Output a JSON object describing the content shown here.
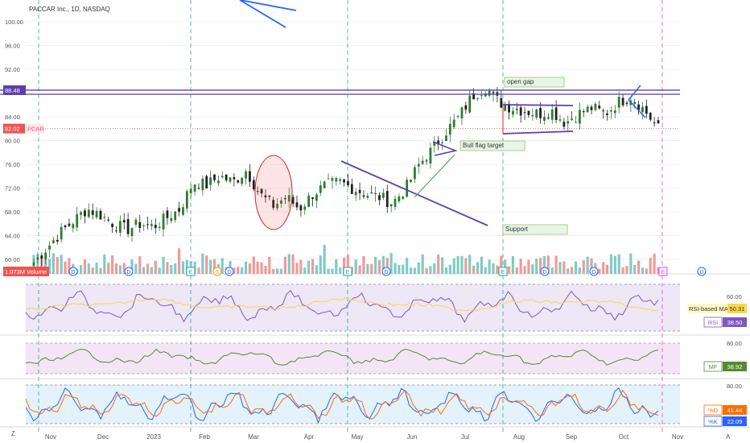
{
  "header": {
    "symbol_title": "PACCAR Inc., 1D, NASDAQ"
  },
  "colors": {
    "bull": "#26a69a",
    "bear": "#ef5350",
    "candle_up": "#2e7d32",
    "candle_dn": "#222222",
    "drawing_purple": "#5b3fb0",
    "drawing_blue": "#2962ff",
    "event_green": "#26a69a",
    "event_pink": "#e040fb",
    "rsi_line": "#7e57c2",
    "rsi_ma": "#f9d84a",
    "mfi_line": "#558b2f",
    "stoch_k": "#2962ff",
    "stoch_d": "#ff6d00"
  },
  "price_axis": {
    "ticks": [
      "100.00",
      "96.00",
      "92.00",
      "88.48",
      "84.00",
      "82.02",
      "80.00",
      "76.00",
      "72.00",
      "68.00",
      "64.00",
      "60.00",
      "1.073M"
    ],
    "badges": [
      {
        "value": "88.48",
        "color": "#5b3fb0"
      },
      {
        "value": "82.02",
        "color": "#ef5350"
      },
      {
        "value": "1.073M",
        "color": "#ef5350"
      }
    ],
    "symbol_tag": "PCAR",
    "volume_tag": "Volume"
  },
  "time_axis": [
    "Nov",
    "Dec",
    "2023",
    "Feb",
    "Mar",
    "Apr",
    "May",
    "Jun",
    "Jul",
    "Aug",
    "Sep",
    "Oct",
    "Nov"
  ],
  "corner": {
    "left": "Z",
    "right": "A"
  },
  "annotations": {
    "open_gap": "open gap",
    "bull_flag": "Bull flag target",
    "support": "Support"
  },
  "events": [
    {
      "type": "D",
      "label": "D"
    },
    {
      "type": "D",
      "label": "D"
    },
    {
      "type": "E",
      "label": "E"
    },
    {
      "type": "S",
      "label": "S"
    },
    {
      "type": "D",
      "label": "D"
    },
    {
      "type": "E",
      "label": "E"
    },
    {
      "type": "D",
      "label": "D"
    },
    {
      "type": "E",
      "label": "E"
    },
    {
      "type": "D",
      "label": "D"
    },
    {
      "type": "D",
      "label": "D"
    },
    {
      "type": "E",
      "label": "E"
    },
    {
      "type": "D",
      "label": "D"
    }
  ],
  "rsi": {
    "label": "RSI",
    "value": "38.50",
    "ma_label": "RSI-based MA",
    "ma_value": "50.31",
    "tick": "60.00"
  },
  "mfi": {
    "label": "MF",
    "value": "38.92",
    "tick": "80.00"
  },
  "stoch": {
    "k_label": "%K",
    "k_value": "22.09",
    "d_label": "%D",
    "d_value": "41.44",
    "tick": "80.00"
  },
  "chart_data": {
    "type": "candlestick",
    "title": "PACCAR Inc., 1D, NASDAQ",
    "ylim": [
      58,
      102
    ],
    "close_series": [
      {
        "x": "Nov",
        "y": 59.5
      },
      {
        "x": "Nov",
        "y": 62.0
      },
      {
        "x": "Nov",
        "y": 64.5
      },
      {
        "x": "Nov",
        "y": 66.5
      },
      {
        "x": "Dec",
        "y": 68.5
      },
      {
        "x": "Dec",
        "y": 67.5
      },
      {
        "x": "Dec",
        "y": 66.0
      },
      {
        "x": "Dec",
        "y": 65.0
      },
      {
        "x": "2023",
        "y": 66.0
      },
      {
        "x": "2023",
        "y": 65.5
      },
      {
        "x": "2023",
        "y": 67.0
      },
      {
        "x": "2023",
        "y": 68.5
      },
      {
        "x": "Feb",
        "y": 73.0
      },
      {
        "x": "Feb",
        "y": 72.5
      },
      {
        "x": "Feb",
        "y": 74.0
      },
      {
        "x": "Feb",
        "y": 73.0
      },
      {
        "x": "Mar",
        "y": 75.0
      },
      {
        "x": "Mar",
        "y": 71.0
      },
      {
        "x": "Mar",
        "y": 69.0
      },
      {
        "x": "Mar",
        "y": 70.5
      },
      {
        "x": "Apr",
        "y": 68.5
      },
      {
        "x": "Apr",
        "y": 71.0
      },
      {
        "x": "Apr",
        "y": 72.5
      },
      {
        "x": "Apr",
        "y": 73.0
      },
      {
        "x": "May",
        "y": 72.0
      },
      {
        "x": "May",
        "y": 71.0
      },
      {
        "x": "May",
        "y": 70.5
      },
      {
        "x": "May",
        "y": 69.5
      },
      {
        "x": "Jun",
        "y": 72.0
      },
      {
        "x": "Jun",
        "y": 76.0
      },
      {
        "x": "Jun",
        "y": 78.5
      },
      {
        "x": "Jun",
        "y": 81.5
      },
      {
        "x": "Jul",
        "y": 84.0
      },
      {
        "x": "Jul",
        "y": 87.5
      },
      {
        "x": "Jul",
        "y": 89.0
      },
      {
        "x": "Jul",
        "y": 86.5
      },
      {
        "x": "Aug",
        "y": 85.5
      },
      {
        "x": "Aug",
        "y": 85.0
      },
      {
        "x": "Aug",
        "y": 84.5
      },
      {
        "x": "Aug",
        "y": 85.0
      },
      {
        "x": "Sep",
        "y": 83.0
      },
      {
        "x": "Sep",
        "y": 84.5
      },
      {
        "x": "Sep",
        "y": 85.5
      },
      {
        "x": "Sep",
        "y": 84.5
      },
      {
        "x": "Oct",
        "y": 86.5
      },
      {
        "x": "Oct",
        "y": 87.5
      },
      {
        "x": "Oct",
        "y": 85.0
      },
      {
        "x": "Oct",
        "y": 82.0
      }
    ],
    "horizontal_levels": [
      88.48,
      87.8
    ],
    "legend": "none"
  }
}
